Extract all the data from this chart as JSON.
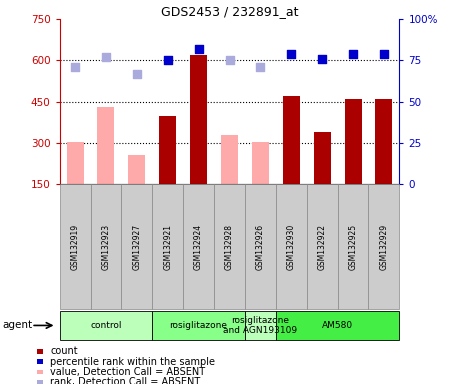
{
  "title": "GDS2453 / 232891_at",
  "samples": [
    "GSM132919",
    "GSM132923",
    "GSM132927",
    "GSM132921",
    "GSM132924",
    "GSM132928",
    "GSM132926",
    "GSM132930",
    "GSM132922",
    "GSM132925",
    "GSM132929"
  ],
  "count_values": [
    null,
    null,
    null,
    400,
    620,
    null,
    null,
    470,
    340,
    460,
    460
  ],
  "count_absent": [
    305,
    430,
    255,
    null,
    null,
    330,
    305,
    null,
    null,
    null,
    null
  ],
  "rank_present": [
    null,
    null,
    null,
    75,
    82,
    null,
    null,
    79,
    76,
    79,
    79
  ],
  "rank_absent": [
    71,
    77,
    67,
    null,
    null,
    75,
    71,
    null,
    null,
    null,
    null
  ],
  "ylim_left": [
    150,
    750
  ],
  "ylim_right": [
    0,
    100
  ],
  "yticks_left": [
    150,
    300,
    450,
    600,
    750
  ],
  "yticks_right": [
    0,
    25,
    50,
    75,
    100
  ],
  "ytick_labels_left": [
    "150",
    "300",
    "450",
    "600",
    "750"
  ],
  "ytick_labels_right": [
    "0",
    "25",
    "50",
    "75",
    "100%"
  ],
  "groups": [
    {
      "label": "control",
      "start": 0,
      "end": 3,
      "color": "#bbffbb"
    },
    {
      "label": "rosiglitazone",
      "start": 3,
      "end": 6,
      "color": "#88ff88"
    },
    {
      "label": "rosiglitazone\nand AGN193109",
      "start": 6,
      "end": 7,
      "color": "#bbffbb"
    },
    {
      "label": "AM580",
      "start": 7,
      "end": 11,
      "color": "#44ee44"
    }
  ],
  "agent_label": "agent",
  "color_count_present": "#aa0000",
  "color_count_absent": "#ffaaaa",
  "color_rank_present": "#0000cc",
  "color_rank_absent": "#aaaadd",
  "bar_width": 0.55,
  "legend": [
    {
      "color": "#aa0000",
      "label": "count"
    },
    {
      "color": "#0000cc",
      "label": "percentile rank within the sample"
    },
    {
      "color": "#ffaaaa",
      "label": "value, Detection Call = ABSENT"
    },
    {
      "color": "#aaaadd",
      "label": "rank, Detection Call = ABSENT"
    }
  ],
  "tick_color_left": "#cc0000",
  "tick_color_right": "#0000cc",
  "gridline_values": [
    300,
    450,
    600
  ],
  "n_samples": 11
}
